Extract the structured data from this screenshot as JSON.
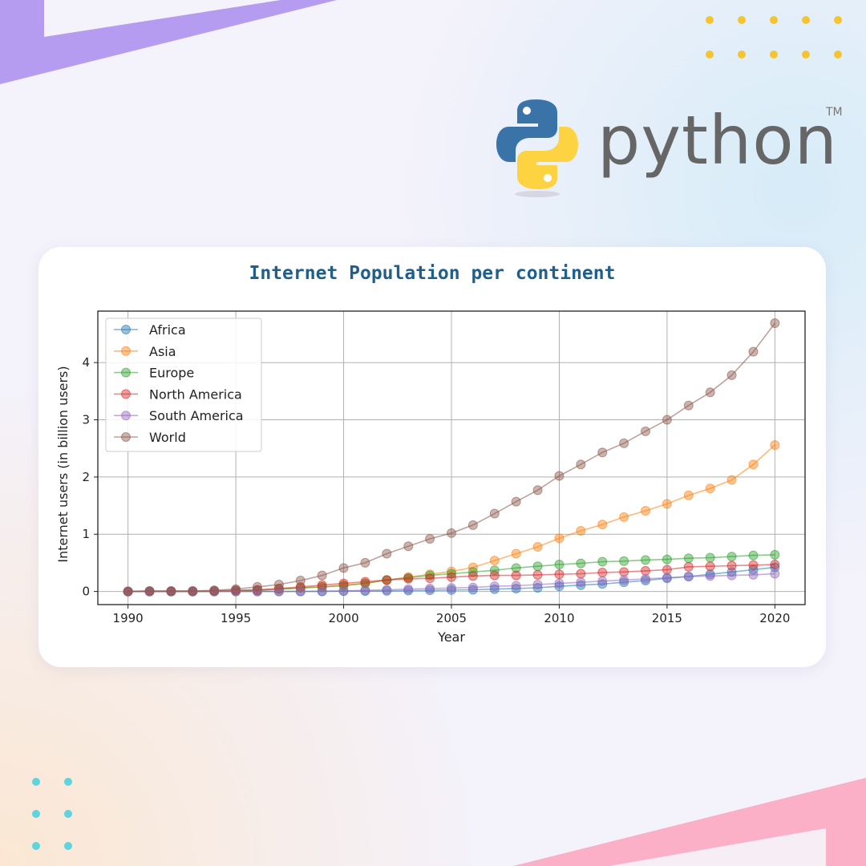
{
  "logo": {
    "text": "python",
    "tm": "TM",
    "colors": {
      "blue": "#3a73a8",
      "yellow": "#fdd342",
      "text": "#666666"
    }
  },
  "decor": {
    "top_band_color": "#b69cf0",
    "bottom_band_color": "#fbb0c8",
    "dot_yellow": "#f5c431",
    "dot_teal": "#5fd3de"
  },
  "chart_data": {
    "type": "line",
    "title": "Internet Population per continent",
    "xlabel": "Year",
    "ylabel": "Internet users (in billion users)",
    "xlim": [
      1988.6,
      2021.4
    ],
    "ylim": [
      -0.23,
      4.9
    ],
    "xticks": [
      1990,
      1995,
      2000,
      2005,
      2010,
      2015,
      2020
    ],
    "yticks": [
      0,
      1,
      2,
      3,
      4
    ],
    "grid": true,
    "legend_position": "top-left",
    "markers": "circle",
    "x": [
      1990,
      1991,
      1992,
      1993,
      1994,
      1995,
      1996,
      1997,
      1998,
      1999,
      2000,
      2001,
      2002,
      2003,
      2004,
      2005,
      2006,
      2007,
      2008,
      2009,
      2010,
      2011,
      2012,
      2013,
      2014,
      2015,
      2016,
      2017,
      2018,
      2019,
      2020
    ],
    "series": [
      {
        "name": "Africa",
        "color": "#1f77b4",
        "values": [
          0,
          0,
          0,
          0,
          0,
          0,
          0,
          0,
          0,
          0,
          0.005,
          0.007,
          0.01,
          0.015,
          0.02,
          0.025,
          0.03,
          0.04,
          0.05,
          0.065,
          0.09,
          0.11,
          0.13,
          0.16,
          0.19,
          0.23,
          0.26,
          0.3,
          0.34,
          0.38,
          0.42
        ]
      },
      {
        "name": "Asia",
        "color": "#ff7f0e",
        "values": [
          0,
          0,
          0,
          0,
          0,
          0.01,
          0.02,
          0.04,
          0.06,
          0.08,
          0.11,
          0.14,
          0.2,
          0.25,
          0.3,
          0.35,
          0.42,
          0.54,
          0.66,
          0.78,
          0.93,
          1.06,
          1.17,
          1.3,
          1.41,
          1.53,
          1.68,
          1.8,
          1.95,
          2.22,
          2.56
        ]
      },
      {
        "name": "Europe",
        "color": "#2ca02c",
        "values": [
          0,
          0,
          0,
          0,
          0,
          0.01,
          0.02,
          0.04,
          0.06,
          0.08,
          0.1,
          0.14,
          0.2,
          0.24,
          0.28,
          0.31,
          0.34,
          0.37,
          0.41,
          0.44,
          0.47,
          0.49,
          0.52,
          0.53,
          0.55,
          0.56,
          0.58,
          0.59,
          0.61,
          0.63,
          0.64
        ]
      },
      {
        "name": "North America",
        "color": "#d62728",
        "values": [
          0,
          0,
          0,
          0,
          0.01,
          0.02,
          0.03,
          0.05,
          0.08,
          0.11,
          0.14,
          0.17,
          0.2,
          0.22,
          0.23,
          0.25,
          0.27,
          0.28,
          0.28,
          0.29,
          0.3,
          0.31,
          0.33,
          0.34,
          0.36,
          0.38,
          0.43,
          0.44,
          0.45,
          0.46,
          0.47
        ]
      },
      {
        "name": "South America",
        "color": "#9467bd",
        "values": [
          0,
          0,
          0,
          0,
          0,
          0,
          0,
          0,
          0,
          0.005,
          0.01,
          0.02,
          0.03,
          0.04,
          0.05,
          0.06,
          0.07,
          0.09,
          0.1,
          0.12,
          0.14,
          0.16,
          0.18,
          0.2,
          0.22,
          0.24,
          0.26,
          0.27,
          0.28,
          0.29,
          0.31
        ]
      },
      {
        "name": "World",
        "color": "#8c564b",
        "values": [
          0,
          0.01,
          0.01,
          0.01,
          0.02,
          0.04,
          0.08,
          0.12,
          0.19,
          0.28,
          0.41,
          0.5,
          0.66,
          0.79,
          0.92,
          1.02,
          1.16,
          1.36,
          1.57,
          1.77,
          2.02,
          2.22,
          2.43,
          2.59,
          2.8,
          3.0,
          3.25,
          3.48,
          3.78,
          4.19,
          4.69
        ]
      }
    ]
  }
}
